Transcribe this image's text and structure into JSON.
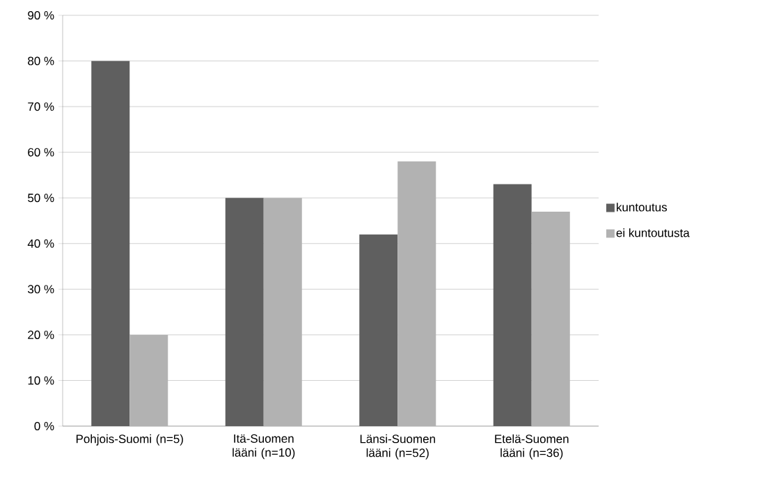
{
  "chart_data": {
    "type": "bar",
    "categories": [
      "Pohjois-Suomi (n=5)",
      "Itä-Suomen lääni (n=10)",
      "Länsi-Suomen lääni (n=52)",
      "Etelä-Suomen lääni (n=36)"
    ],
    "series": [
      {
        "name": "kuntoutus",
        "color": "#5f5f5f",
        "values": [
          80,
          50,
          42,
          53
        ]
      },
      {
        "name": "ei kuntoutusta",
        "color": "#b2b2b2",
        "values": [
          20,
          50,
          58,
          47
        ]
      }
    ],
    "ylim": [
      0,
      90
    ],
    "yticks": [
      {
        "value": 0,
        "label": "0 %"
      },
      {
        "value": 10,
        "label": "10 %"
      },
      {
        "value": 20,
        "label": "20 %"
      },
      {
        "value": 30,
        "label": "30 %"
      },
      {
        "value": 40,
        "label": "40 %"
      },
      {
        "value": 50,
        "label": "50 %"
      },
      {
        "value": 60,
        "label": "60 %"
      },
      {
        "value": 70,
        "label": "70 %"
      },
      {
        "value": 80,
        "label": "80 %"
      },
      {
        "value": 90,
        "label": "90 %"
      }
    ],
    "grid": "y",
    "legend": "right"
  }
}
